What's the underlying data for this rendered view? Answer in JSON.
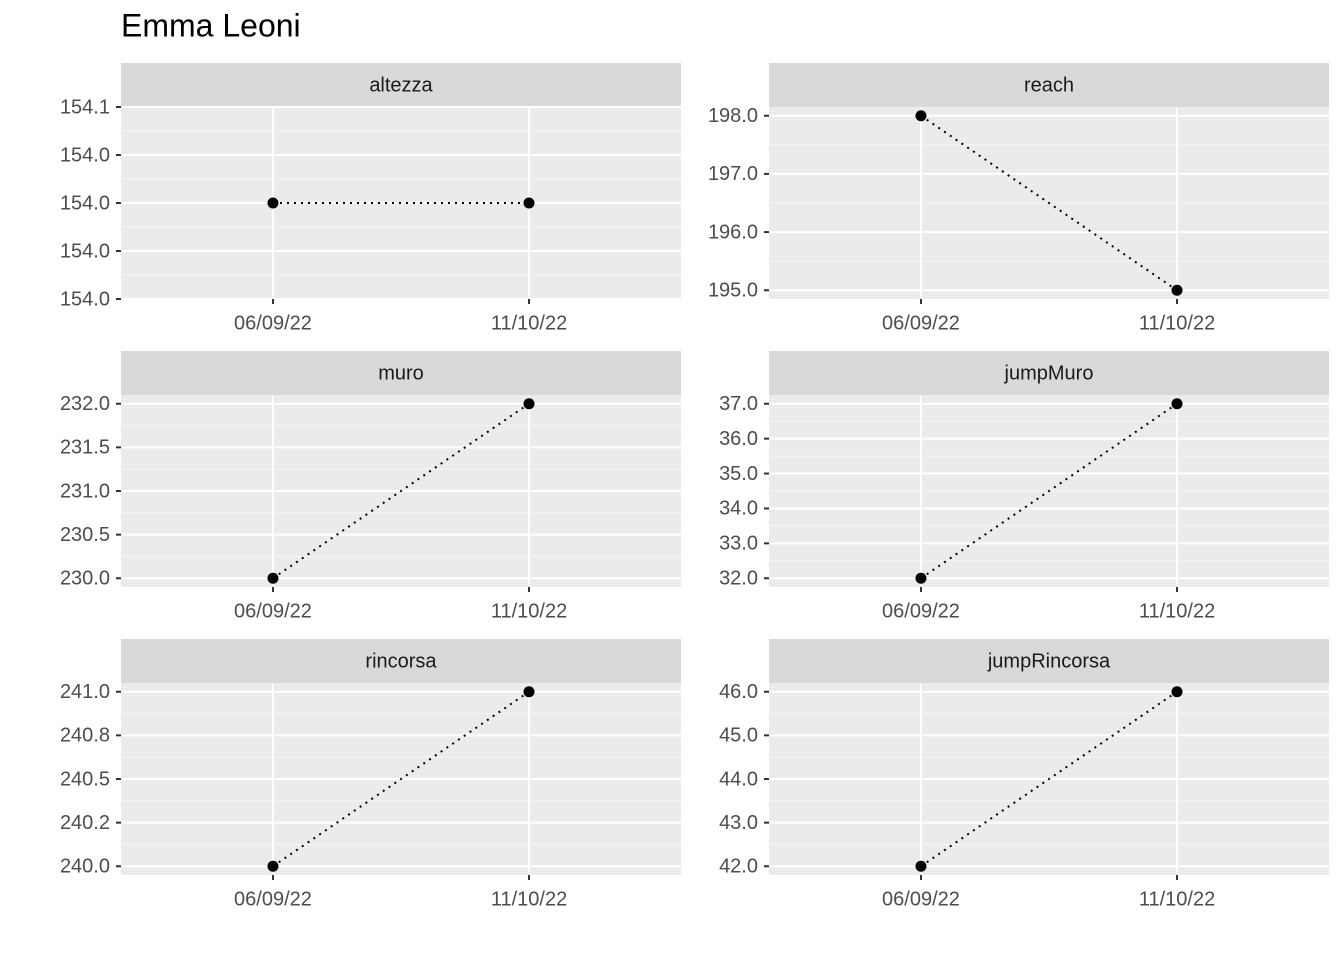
{
  "title": "Emma Leoni",
  "chart_data": [
    {
      "type": "line",
      "title": "altezza",
      "categories": [
        "06/09/22",
        "11/10/22"
      ],
      "values": [
        154,
        154
      ],
      "color": "#000000",
      "linestyle": "dotted",
      "grid": true,
      "ylim": [
        153.95,
        154.05
      ],
      "yticks": [
        {
          "value": 153.95,
          "label": "154.0"
        },
        {
          "value": 153.975,
          "label": "154.0"
        },
        {
          "value": 154.0,
          "label": "154.0"
        },
        {
          "value": 154.025,
          "label": "154.0"
        },
        {
          "value": 154.05,
          "label": "154.1"
        }
      ]
    },
    {
      "type": "line",
      "title": "reach",
      "categories": [
        "06/09/22",
        "11/10/22"
      ],
      "values": [
        198,
        195
      ],
      "color": "#000000",
      "linestyle": "dotted",
      "grid": true,
      "ylim": [
        194.85,
        198.15
      ],
      "yticks": [
        {
          "value": 195,
          "label": "195.0"
        },
        {
          "value": 196,
          "label": "196.0"
        },
        {
          "value": 197,
          "label": "197.0"
        },
        {
          "value": 198,
          "label": "198.0"
        }
      ]
    },
    {
      "type": "line",
      "title": "muro",
      "categories": [
        "06/09/22",
        "11/10/22"
      ],
      "values": [
        230,
        232
      ],
      "color": "#000000",
      "linestyle": "dotted",
      "grid": true,
      "ylim": [
        229.9,
        232.1
      ],
      "yticks": [
        {
          "value": 230,
          "label": "230.0"
        },
        230.5,
        {
          "value": 231,
          "label": "231.0"
        },
        231.5,
        {
          "value": 232,
          "label": "232.0"
        }
      ]
    },
    {
      "type": "line",
      "title": "jumpMuro",
      "categories": [
        "06/09/22",
        "11/10/22"
      ],
      "values": [
        32,
        37
      ],
      "color": "#000000",
      "linestyle": "dotted",
      "grid": true,
      "ylim": [
        31.75,
        37.25
      ],
      "yticks": [
        {
          "value": 32,
          "label": "32.0"
        },
        {
          "value": 33,
          "label": "33.0"
        },
        {
          "value": 34,
          "label": "34.0"
        },
        {
          "value": 35,
          "label": "35.0"
        },
        {
          "value": 36,
          "label": "36.0"
        },
        {
          "value": 37,
          "label": "37.0"
        }
      ]
    },
    {
      "type": "line",
      "title": "rincorsa",
      "categories": [
        "06/09/22",
        "11/10/22"
      ],
      "values": [
        240,
        241
      ],
      "color": "#000000",
      "linestyle": "dotted",
      "grid": true,
      "ylim": [
        239.95,
        241.05
      ],
      "yticks": [
        {
          "value": 240,
          "label": "240.0"
        },
        {
          "value": 240.25,
          "label": "240.2"
        },
        240.5,
        {
          "value": 240.75,
          "label": "240.8"
        },
        {
          "value": 241,
          "label": "241.0"
        }
      ]
    },
    {
      "type": "line",
      "title": "jumpRincorsa",
      "categories": [
        "06/09/22",
        "11/10/22"
      ],
      "values": [
        42,
        46
      ],
      "color": "#000000",
      "linestyle": "dotted",
      "grid": true,
      "ylim": [
        41.8,
        46.2
      ],
      "yticks": [
        {
          "value": 42,
          "label": "42.0"
        },
        {
          "value": 43,
          "label": "43.0"
        },
        {
          "value": 44,
          "label": "44.0"
        },
        {
          "value": 45,
          "label": "45.0"
        },
        {
          "value": 46,
          "label": "46.0"
        }
      ]
    }
  ]
}
